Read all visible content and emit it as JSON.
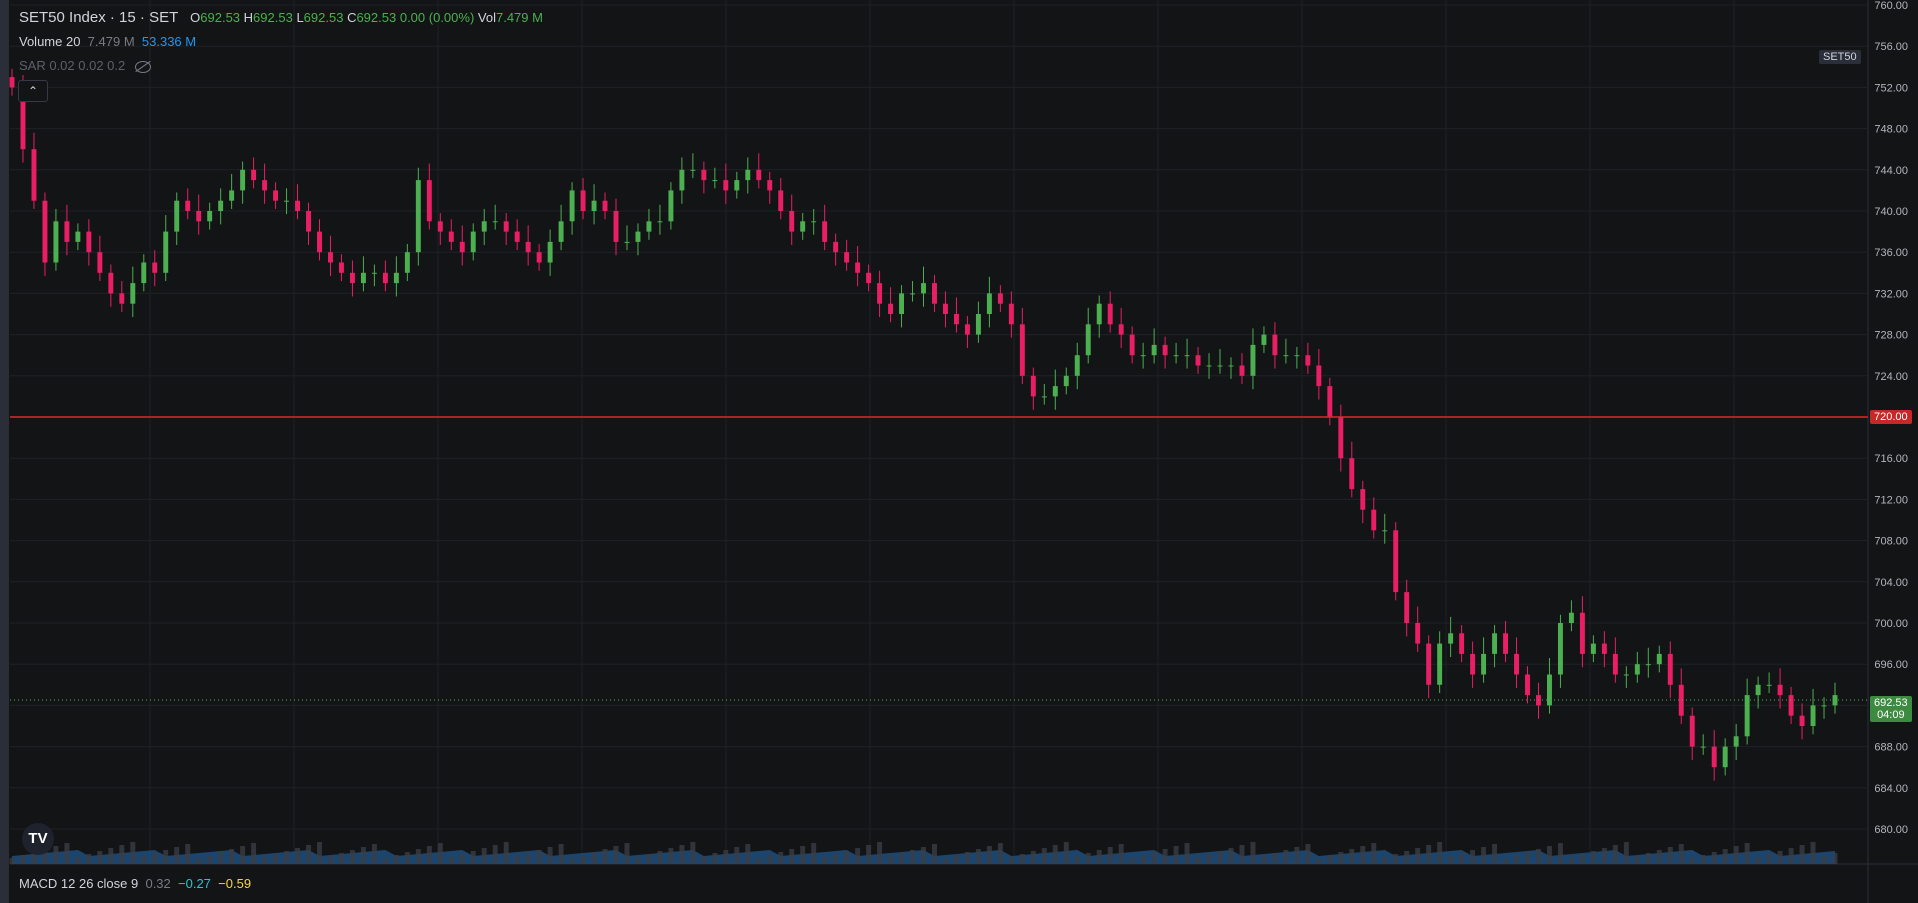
{
  "header": {
    "symbol": "SET50 Index · 15 · SET",
    "o_label": "O",
    "o_value": "692.53",
    "h_label": "H",
    "h_value": "692.53",
    "l_label": "L",
    "l_value": "692.53",
    "c_label": "C",
    "c_value": "692.53",
    "change": "0.00 (0.00%)",
    "vol_label": "Vol",
    "vol_value": "7.479 M"
  },
  "volume_legend": {
    "label": "Volume 20",
    "value1": "7.479 M",
    "value2": "53.336 M"
  },
  "sar_legend": {
    "label": "SAR 0.02 0.02 0.2"
  },
  "collapse_glyph": "⌃",
  "macd_legend": {
    "label": "MACD 12 26 close 9",
    "v1": "0.32",
    "v2": "−0.27",
    "v3": "−0.59"
  },
  "symbol_tag": "SET50",
  "level_tag": "720.00",
  "last_price": "692.53",
  "countdown": "04:09",
  "logo_text": "TV",
  "colors": {
    "up": "#4caf50",
    "down": "#e91e63",
    "line": "#e0262f",
    "volume": "#2962ff",
    "bg": "#131416"
  },
  "chart_data": {
    "type": "candlestick",
    "ylim": [
      676,
      760
    ],
    "y_ticks": [
      "760.00",
      "756.00",
      "752.00",
      "748.00",
      "744.00",
      "740.00",
      "736.00",
      "732.00",
      "728.00",
      "724.00",
      "720.00",
      "716.00",
      "712.00",
      "708.00",
      "704.00",
      "700.00",
      "696.00",
      "692.00",
      "688.00",
      "684.00",
      "680.00"
    ],
    "horizontal_line": 720.0,
    "last_price": 692.53,
    "closes": [
      752,
      746,
      741,
      735,
      739,
      737,
      738,
      736,
      734,
      732,
      731,
      733,
      735,
      734,
      738,
      741,
      740,
      739,
      740,
      741,
      742,
      744,
      743,
      742,
      741,
      741,
      740,
      738,
      736,
      735,
      734,
      733,
      734,
      734,
      733,
      734,
      736,
      743,
      739,
      738,
      737,
      736,
      738,
      739,
      739,
      738,
      737,
      736,
      735,
      737,
      739,
      742,
      740,
      741,
      740,
      737,
      737,
      738,
      739,
      739,
      742,
      744,
      744,
      743,
      743,
      742,
      743,
      744,
      743,
      742,
      740,
      738,
      739,
      739,
      737,
      736,
      735,
      734,
      733,
      731,
      730,
      732,
      732,
      733,
      731,
      730,
      729,
      728,
      730,
      732,
      731,
      729,
      724,
      722,
      722,
      723,
      724,
      726,
      729,
      731,
      729,
      728,
      726,
      726,
      727,
      726,
      726,
      726,
      725,
      725,
      725,
      725,
      724,
      727,
      728,
      726,
      726,
      726,
      725,
      723,
      720,
      716,
      713,
      711,
      709,
      709,
      703,
      700,
      698,
      694,
      698,
      699,
      697,
      695,
      697,
      699,
      697,
      695,
      693,
      692,
      695,
      700,
      701,
      697,
      698,
      697,
      695,
      695,
      696,
      696,
      697,
      694,
      691,
      688,
      688,
      686,
      688,
      689,
      693,
      694,
      694,
      693,
      691,
      690,
      692,
      692,
      693
    ]
  }
}
